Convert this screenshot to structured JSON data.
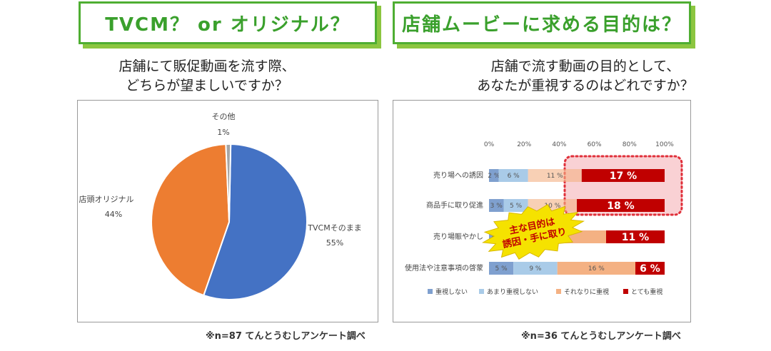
{
  "left": {
    "heading": "TVCM？ or オリジナル？",
    "question_line1": "店舗にて販促動画を流す際、",
    "question_line2": "どちらが望ましいですか？",
    "note": "※n=87 てんとうむしアンケート調べ"
  },
  "right": {
    "heading": "店舗ムービーに求める目的は？",
    "question_line1": "店舗で流す動画の目的として、",
    "question_line2": "あなたが重視するのはどれですか？",
    "note": "※n=36 てんとうむしアンケート調べ",
    "callout_line1": "主な目的は",
    "callout_line2": "誘因・手に取り"
  },
  "chart_data": [
    {
      "type": "pie",
      "slices": [
        {
          "label": "TVCMそのまま",
          "value": 55,
          "pct_label": "55%",
          "color": "#4472c4"
        },
        {
          "label": "店頭オリジナル",
          "value": 44,
          "pct_label": "44%",
          "color": "#ed7d31"
        },
        {
          "label": "その他",
          "value": 1,
          "pct_label": "1%",
          "color": "#a5a5a5"
        }
      ]
    },
    {
      "type": "bar",
      "stacked": "percent",
      "orientation": "horizontal",
      "x_ticks": [
        "0%",
        "20%",
        "40%",
        "60%",
        "80%",
        "100%"
      ],
      "xlim": [
        0,
        100
      ],
      "categories": [
        "売り場への誘因",
        "商品手に取り促進",
        "売り場賑やかし",
        "使用法や注意事項の啓蒙"
      ],
      "series": [
        {
          "name": "重視しない",
          "color": "#7fa0cf",
          "labels": [
            "2 %",
            "3 %",
            "3 %",
            "5 %"
          ],
          "values": [
            2,
            3,
            3,
            5
          ]
        },
        {
          "name": "あまり重視しない",
          "color": "#a9cbe8",
          "labels": [
            "6 %",
            "5 %",
            "",
            "9 %"
          ],
          "values": [
            6,
            5,
            10,
            9
          ]
        },
        {
          "name": "それなりに重視",
          "color": "#f4b183",
          "labels": [
            "11 %",
            "10 %",
            "",
            "16 %"
          ],
          "values": [
            11,
            10,
            9,
            16
          ]
        },
        {
          "name": "とても重視",
          "color": "#c00000",
          "labels": [
            "17 %",
            "18 %",
            "11 %",
            "6 %"
          ],
          "values": [
            17,
            18,
            11,
            6
          ]
        }
      ],
      "legend": "bottom",
      "highlight_color": "#e0303a"
    }
  ]
}
